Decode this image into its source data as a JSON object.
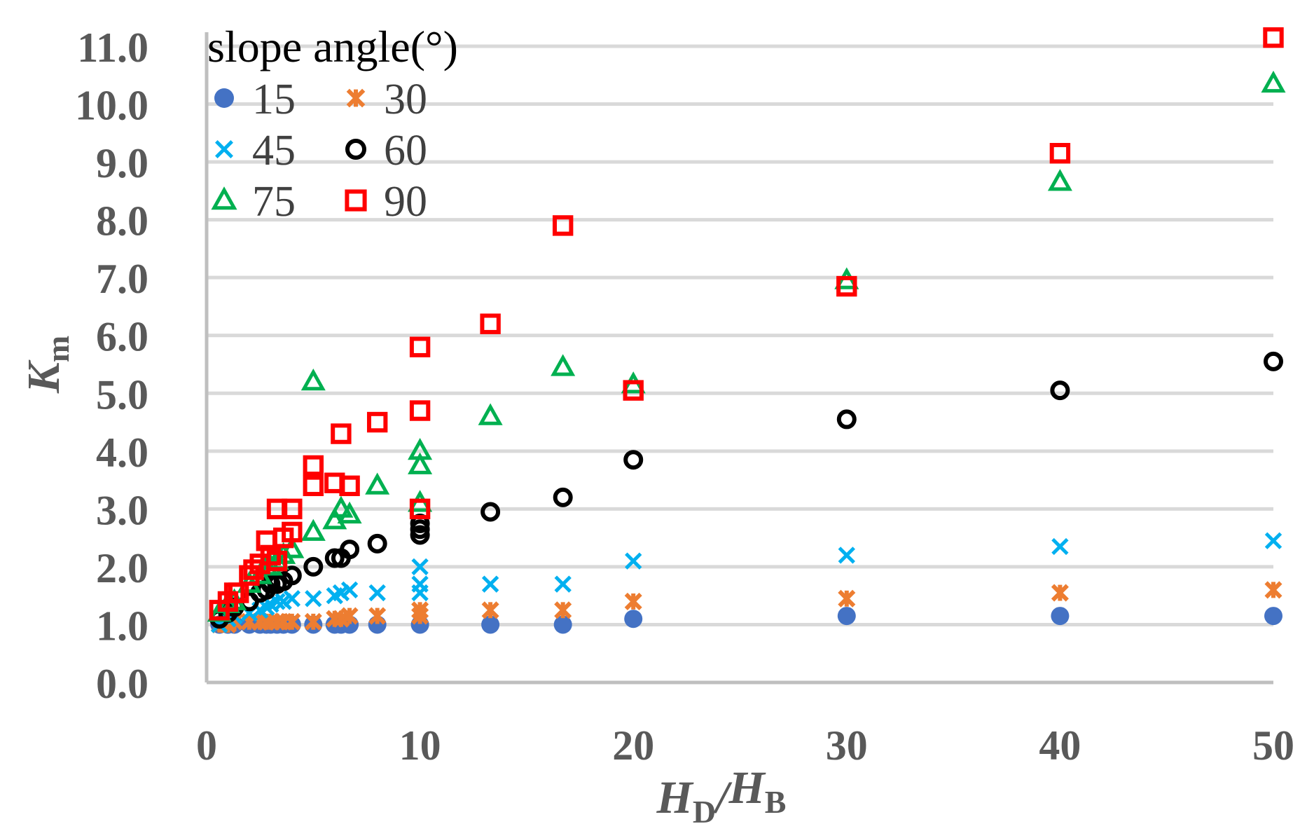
{
  "chart_data": {
    "type": "scatter",
    "title": "",
    "xlabel": {
      "main": "H",
      "sub1": "D",
      "slash": "/",
      "main2": "H",
      "sub2": "B"
    },
    "ylabel": {
      "main": "K",
      "sub": "m"
    },
    "xlim": [
      0,
      50
    ],
    "ylim": [
      0,
      11
    ],
    "x_ticks": [
      0,
      10,
      20,
      30,
      40,
      50
    ],
    "x_tick_labels": [
      "0",
      "10",
      "20",
      "30",
      "40",
      "50"
    ],
    "y_ticks": [
      0,
      1,
      2,
      3,
      4,
      5,
      6,
      7,
      8,
      9,
      10,
      11
    ],
    "y_tick_labels": [
      "0.0",
      "1.0",
      "2.0",
      "3.0",
      "4.0",
      "5.0",
      "6.0",
      "7.0",
      "8.0",
      "9.0",
      "10.0",
      "11.0"
    ],
    "grid": true,
    "legend": {
      "title": "slope angle(°)",
      "placement": "top-left inside plot, 2 columns"
    },
    "series": [
      {
        "name": "15",
        "marker": "filled-circle",
        "color": "#4472c4",
        "points": [
          [
            0.6,
            1.0
          ],
          [
            1.0,
            1.0
          ],
          [
            1.3,
            1.0
          ],
          [
            2.0,
            1.0
          ],
          [
            2.5,
            1.0
          ],
          [
            2.8,
            1.0
          ],
          [
            3.0,
            1.0
          ],
          [
            3.3,
            1.0
          ],
          [
            3.6,
            1.0
          ],
          [
            4.0,
            1.0
          ],
          [
            5.0,
            1.0
          ],
          [
            6.0,
            1.0
          ],
          [
            6.3,
            1.0
          ],
          [
            6.7,
            1.0
          ],
          [
            8.0,
            1.0
          ],
          [
            10.0,
            1.0
          ],
          [
            13.3,
            1.0
          ],
          [
            16.7,
            1.0
          ],
          [
            20.0,
            1.1
          ],
          [
            30.0,
            1.15
          ],
          [
            40.0,
            1.15
          ],
          [
            50.0,
            1.15
          ]
        ]
      },
      {
        "name": "30",
        "marker": "asterisk",
        "color": "#ed7d31",
        "points": [
          [
            0.6,
            1.0
          ],
          [
            1.0,
            1.0
          ],
          [
            1.3,
            1.05
          ],
          [
            2.0,
            1.05
          ],
          [
            2.5,
            1.05
          ],
          [
            2.8,
            1.05
          ],
          [
            3.0,
            1.05
          ],
          [
            3.3,
            1.05
          ],
          [
            3.6,
            1.05
          ],
          [
            4.0,
            1.05
          ],
          [
            5.0,
            1.05
          ],
          [
            6.0,
            1.1
          ],
          [
            6.3,
            1.1
          ],
          [
            6.7,
            1.15
          ],
          [
            8.0,
            1.15
          ],
          [
            10.0,
            1.15
          ],
          [
            10.0,
            1.25
          ],
          [
            13.3,
            1.25
          ],
          [
            16.7,
            1.25
          ],
          [
            20.0,
            1.4
          ],
          [
            30.0,
            1.45
          ],
          [
            40.0,
            1.55
          ],
          [
            50.0,
            1.6
          ]
        ]
      },
      {
        "name": "45",
        "marker": "x",
        "color": "#00b0f0",
        "points": [
          [
            0.6,
            1.0
          ],
          [
            1.0,
            1.1
          ],
          [
            1.3,
            1.15
          ],
          [
            2.0,
            1.2
          ],
          [
            2.5,
            1.25
          ],
          [
            2.8,
            1.3
          ],
          [
            3.0,
            1.35
          ],
          [
            3.3,
            1.4
          ],
          [
            3.6,
            1.4
          ],
          [
            4.0,
            1.45
          ],
          [
            5.0,
            1.45
          ],
          [
            6.0,
            1.5
          ],
          [
            6.3,
            1.55
          ],
          [
            6.7,
            1.6
          ],
          [
            8.0,
            1.55
          ],
          [
            10.0,
            1.55
          ],
          [
            10.0,
            1.7
          ],
          [
            10.0,
            2.0
          ],
          [
            13.3,
            1.7
          ],
          [
            16.7,
            1.7
          ],
          [
            20.0,
            2.1
          ],
          [
            30.0,
            2.2
          ],
          [
            40.0,
            2.35
          ],
          [
            50.0,
            2.45
          ]
        ]
      },
      {
        "name": "60",
        "marker": "open-circle",
        "color": "#000000",
        "points": [
          [
            0.6,
            1.1
          ],
          [
            1.0,
            1.2
          ],
          [
            1.3,
            1.3
          ],
          [
            2.0,
            1.4
          ],
          [
            2.5,
            1.55
          ],
          [
            2.8,
            1.6
          ],
          [
            3.0,
            1.7
          ],
          [
            3.3,
            1.7
          ],
          [
            3.6,
            1.75
          ],
          [
            4.0,
            1.85
          ],
          [
            5.0,
            2.0
          ],
          [
            6.0,
            2.15
          ],
          [
            6.3,
            2.15
          ],
          [
            6.7,
            2.3
          ],
          [
            8.0,
            2.4
          ],
          [
            10.0,
            2.55
          ],
          [
            10.0,
            2.65
          ],
          [
            10.0,
            2.75
          ],
          [
            13.3,
            2.95
          ],
          [
            16.7,
            3.2
          ],
          [
            20.0,
            3.85
          ],
          [
            30.0,
            4.55
          ],
          [
            40.0,
            5.05
          ],
          [
            50.0,
            5.55
          ]
        ]
      },
      {
        "name": "75",
        "marker": "open-triangle",
        "color": "#00b050",
        "points": [
          [
            0.6,
            1.2
          ],
          [
            1.0,
            1.35
          ],
          [
            1.3,
            1.4
          ],
          [
            2.0,
            1.7
          ],
          [
            2.5,
            1.85
          ],
          [
            2.8,
            2.0
          ],
          [
            3.0,
            2.0
          ],
          [
            3.3,
            2.1
          ],
          [
            3.6,
            2.2
          ],
          [
            4.0,
            2.3
          ],
          [
            5.0,
            2.6
          ],
          [
            5.0,
            5.2
          ],
          [
            6.0,
            2.8
          ],
          [
            6.3,
            3.0
          ],
          [
            6.7,
            2.9
          ],
          [
            8.0,
            3.4
          ],
          [
            10.0,
            3.1
          ],
          [
            10.0,
            3.75
          ],
          [
            10.0,
            4.0
          ],
          [
            13.3,
            4.6
          ],
          [
            16.7,
            5.45
          ],
          [
            20.0,
            5.15
          ],
          [
            30.0,
            6.95
          ],
          [
            40.0,
            8.65
          ],
          [
            50.0,
            10.35
          ]
        ]
      },
      {
        "name": "90",
        "marker": "open-square",
        "color": "#ff0000",
        "points": [
          [
            0.6,
            1.25
          ],
          [
            1.0,
            1.4
          ],
          [
            1.3,
            1.55
          ],
          [
            1.5,
            1.55
          ],
          [
            2.0,
            1.85
          ],
          [
            2.2,
            1.95
          ],
          [
            2.5,
            2.05
          ],
          [
            2.8,
            2.45
          ],
          [
            3.0,
            2.2
          ],
          [
            3.3,
            2.1
          ],
          [
            3.3,
            3.0
          ],
          [
            3.6,
            2.5
          ],
          [
            4.0,
            2.6
          ],
          [
            4.0,
            3.0
          ],
          [
            5.0,
            3.4
          ],
          [
            5.0,
            3.75
          ],
          [
            6.0,
            3.45
          ],
          [
            6.3,
            4.3
          ],
          [
            6.7,
            3.4
          ],
          [
            8.0,
            4.5
          ],
          [
            10.0,
            3.0
          ],
          [
            10.0,
            4.7
          ],
          [
            10.0,
            5.8
          ],
          [
            13.3,
            6.2
          ],
          [
            16.7,
            7.9
          ],
          [
            20.0,
            5.05
          ],
          [
            30.0,
            6.85
          ],
          [
            40.0,
            9.15
          ],
          [
            50.0,
            11.15
          ]
        ]
      }
    ]
  }
}
